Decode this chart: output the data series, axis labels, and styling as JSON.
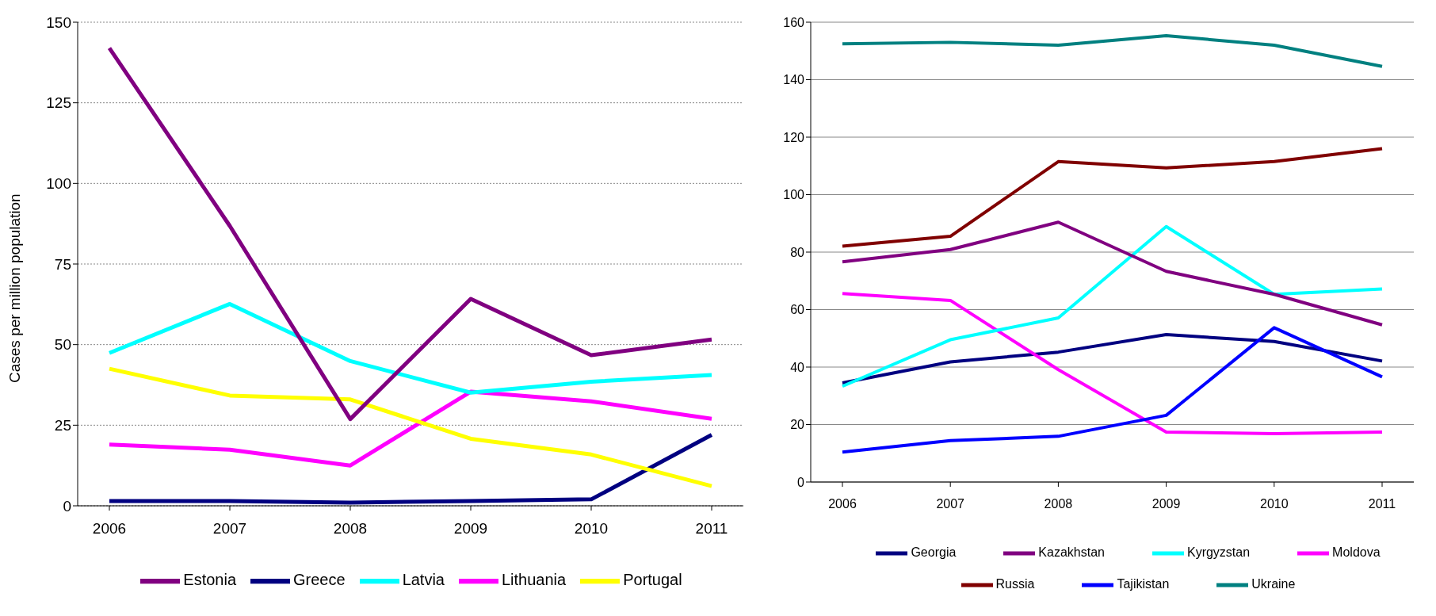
{
  "chart_data": [
    {
      "type": "line",
      "ylabel": "Cases per million population",
      "categories": [
        "2006",
        "2007",
        "2008",
        "2009",
        "2010",
        "2011"
      ],
      "ylim": [
        0,
        150
      ],
      "yticks": [
        0,
        25,
        50,
        75,
        100,
        125,
        150
      ],
      "grid": "y",
      "legend": "bottom",
      "series": [
        {
          "name": "Greece",
          "color": "#000080",
          "values": [
            1.5,
            1.5,
            1,
            1.5,
            2,
            22
          ]
        },
        {
          "name": "Lithuania",
          "color": "#ff00ff",
          "values": [
            19,
            17.4,
            12.5,
            35.4,
            32.4,
            27
          ]
        },
        {
          "name": "Portugal",
          "color": "#ffff00",
          "values": [
            42.5,
            34.2,
            33,
            20.8,
            15.9,
            6.1
          ]
        },
        {
          "name": "Latvia",
          "color": "#00ffff",
          "values": [
            47.4,
            62.6,
            44.9,
            35.1,
            38.5,
            40.6
          ]
        },
        {
          "name": "Estonia",
          "color": "#800080",
          "values": [
            142,
            86.8,
            26.9,
            64.2,
            46.7,
            51.6
          ]
        }
      ]
    },
    {
      "type": "line",
      "categories": [
        "2006",
        "2007",
        "2008",
        "2009",
        "2010",
        "2011"
      ],
      "ylim": [
        0,
        160
      ],
      "yticks": [
        0,
        20,
        40,
        60,
        80,
        100,
        120,
        140,
        160
      ],
      "grid": "y",
      "legend": "bottom",
      "series": [
        {
          "name": "Georgia",
          "color": "#000080",
          "values": [
            34.5,
            41.8,
            45.2,
            51.3,
            48.9,
            42.1
          ]
        },
        {
          "name": "Moldova",
          "color": "#ff00ff",
          "values": [
            65.6,
            63.2,
            39.1,
            17.4,
            16.8,
            17.4
          ]
        },
        {
          "name": "Kyrgyzstan",
          "color": "#00ffff",
          "values": [
            33.3,
            49.5,
            57.1,
            88.9,
            65.3,
            67.2
          ]
        },
        {
          "name": "Kazakhstan",
          "color": "#800080",
          "values": [
            76.6,
            80.9,
            90.4,
            73.3,
            65.3,
            54.7
          ]
        },
        {
          "name": "Russia",
          "color": "#800000",
          "values": [
            82.1,
            85.5,
            111.5,
            109.3,
            111.5,
            116
          ]
        },
        {
          "name": "Ukraine",
          "color": "#008080",
          "values": [
            152.5,
            153,
            152,
            155.3,
            152,
            144.6
          ]
        },
        {
          "name": "Tajikistan",
          "color": "#0000ff",
          "values": [
            10.4,
            14.4,
            15.9,
            23.2,
            53.7,
            36.6
          ]
        }
      ]
    }
  ]
}
